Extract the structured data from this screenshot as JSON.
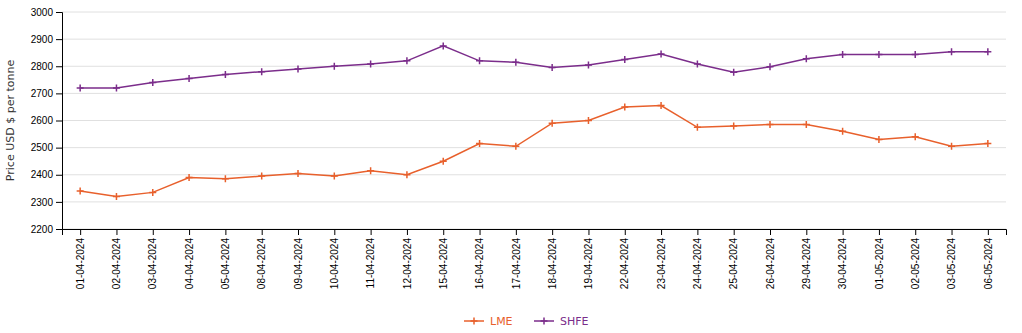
{
  "chart_data": {
    "type": "line",
    "y_label": "Price USD $ per tonne",
    "categories": [
      "01-04-2024",
      "02-04-2024",
      "03-04-2024",
      "04-04-2024",
      "05-04-2024",
      "08-04-2024",
      "09-04-2024",
      "10-04-2024",
      "11-04-2024",
      "12-04-2024",
      "15-04-2024",
      "16-04-2024",
      "17-04-2024",
      "18-04-2024",
      "19-04-2024",
      "22-04-2024",
      "23-04-2024",
      "24-04-2024",
      "25-04-2024",
      "26-04-2024",
      "29-04-2024",
      "30-04-2024",
      "01-05-2024",
      "02-05-2024",
      "03-05-2024",
      "06-05-2024"
    ],
    "series": [
      {
        "name": "LME",
        "color": "#E8602C",
        "marker": "plus",
        "values": [
          2340,
          2320,
          2335,
          2390,
          2385,
          2395,
          2405,
          2395,
          2415,
          2400,
          2450,
          2515,
          2505,
          2590,
          2600,
          2650,
          2655,
          2575,
          2580,
          2585,
          2585,
          2560,
          2530,
          2540,
          2505,
          2515
        ]
      },
      {
        "name": "SHFE",
        "color": "#7B2D8B",
        "marker": "plus",
        "values": [
          2720,
          2720,
          2740,
          2755,
          2770,
          2780,
          2790,
          2800,
          2808,
          2820,
          2875,
          2820,
          2815,
          2795,
          2805,
          2825,
          2845,
          2808,
          2778,
          2798,
          2828,
          2843,
          2843,
          2843,
          2853,
          2853
        ]
      }
    ],
    "ylim": [
      2200,
      3000
    ],
    "yticks": [
      2200,
      2300,
      2400,
      2500,
      2600,
      2700,
      2800,
      2900,
      3000
    ],
    "grid": true,
    "legend": "bottom"
  }
}
